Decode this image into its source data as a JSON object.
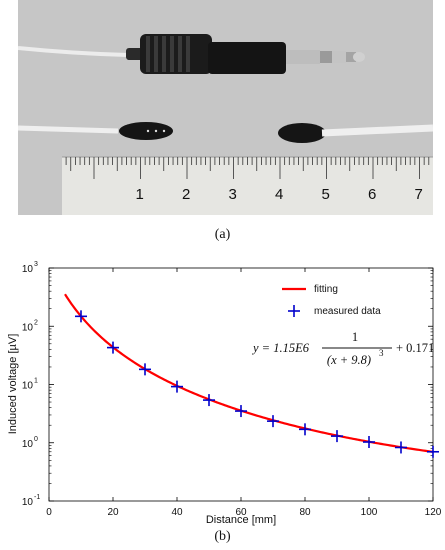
{
  "figure": {
    "caption_a": "(a)",
    "caption_b": "(b)"
  },
  "photo": {
    "ruler_numbers": [
      "1",
      "2",
      "3",
      "4",
      "5",
      "6",
      "7"
    ],
    "colors": {
      "background": "#c8c8c8",
      "ruler": "#e7e7e3",
      "jack_body": "#1a1a1a",
      "jack_metal": "#b8b8b8",
      "cable": "#e9e9e9"
    }
  },
  "chart_data": {
    "type": "scatter",
    "xlabel": "Distance [mm]",
    "ylabel": "Induced voltage [µV]",
    "xlim": [
      0,
      120
    ],
    "ylim_log10": [
      -1,
      3
    ],
    "y_scale": "log",
    "x_ticks": [
      "0",
      "20",
      "40",
      "60",
      "80",
      "100",
      "120"
    ],
    "y_ticks": [
      {
        "base": "10",
        "exp": "-1"
      },
      {
        "base": "10",
        "exp": "0"
      },
      {
        "base": "10",
        "exp": "1"
      },
      {
        "base": "10",
        "exp": "2"
      },
      {
        "base": "10",
        "exp": "3"
      }
    ],
    "legend": [
      "fitting",
      "measured data"
    ],
    "legend_position": "top-right",
    "equation": {
      "lhs": "y = 1.15E6",
      "numerator": "1",
      "denominator": "(x + 9.8)",
      "exponent": "3",
      "tail": "+ 0.171"
    },
    "fit": {
      "a": 1150000,
      "b": 9.8,
      "c": 0.171,
      "x_range": [
        5,
        120
      ],
      "color": "#ff0000"
    },
    "measured": {
      "color": "#0000cc",
      "x": [
        10,
        20,
        30,
        40,
        50,
        60,
        70,
        80,
        90,
        100,
        110,
        120
      ],
      "y": [
        148,
        43,
        18.2,
        9.2,
        5.4,
        3.5,
        2.35,
        1.7,
        1.3,
        1.03,
        0.83,
        0.7
      ]
    }
  }
}
